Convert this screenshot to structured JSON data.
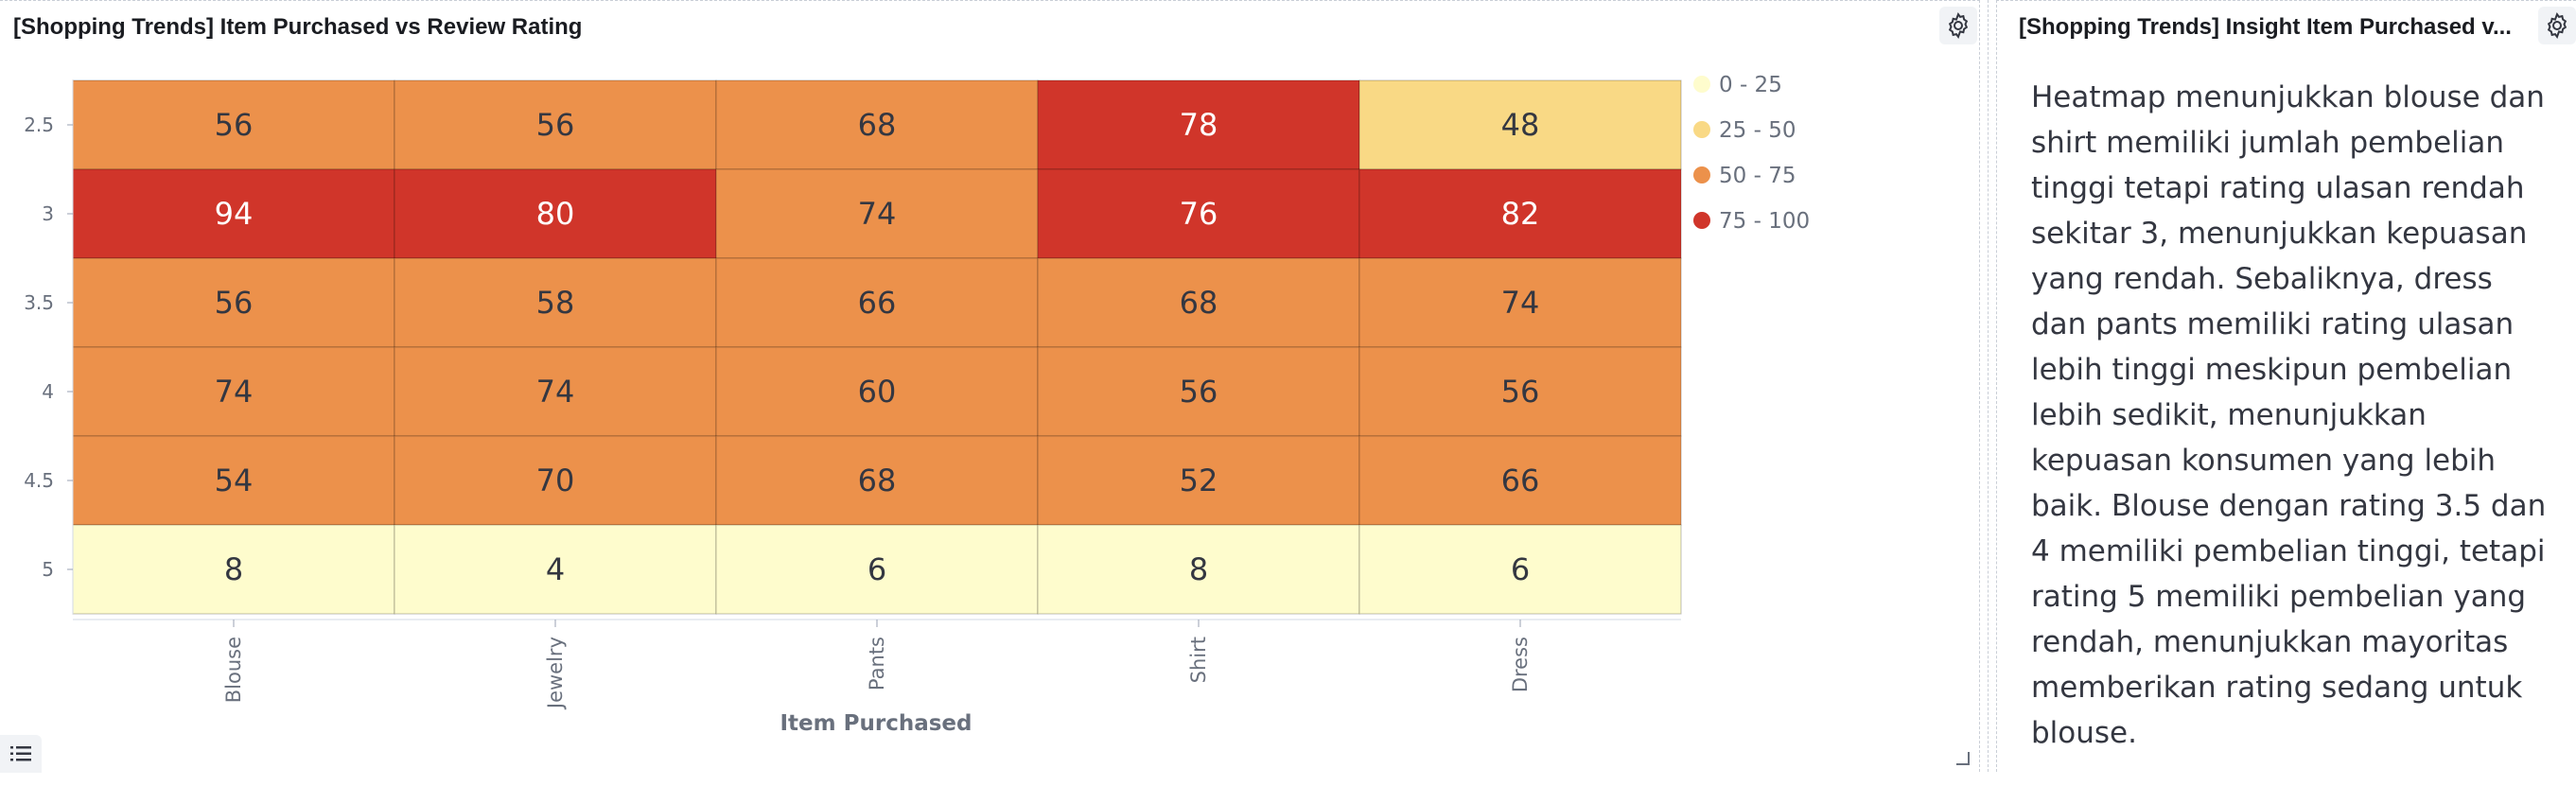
{
  "left_panel": {
    "title": "[Shopping Trends] Item Purchased vs Review Rating",
    "settings_icon": "gear-icon",
    "legend_toggle_icon": "list-icon"
  },
  "right_panel": {
    "title": "[Shopping Trends] Insight Item Purchased v...",
    "settings_icon": "gear-icon",
    "text": "Heatmap menunjukkan blouse dan shirt memiliki jumlah pembelian tinggi tetapi rating ulasan rendah sekitar 3, menunjukkan kepuasan yang rendah. Sebaliknya, dress dan pants memiliki rating ulasan lebih tinggi meskipun pembelian lebih sedikit, menunjukkan kepuasan konsumen yang lebih baik. Blouse dengan rating 3.5 dan 4 memiliki pembelian tinggi, tetapi rating 5 memiliki pembelian yang rendah, menunjukkan mayoritas memberikan rating sedang untuk blouse."
  },
  "chart_data": {
    "type": "heatmap",
    "title": "",
    "xlabel": "Item Purchased",
    "ylabel": "",
    "x_categories": [
      "Blouse",
      "Jewelry",
      "Pants",
      "Shirt",
      "Dress"
    ],
    "y_categories": [
      "2.5",
      "3",
      "3.5",
      "4",
      "4.5",
      "5"
    ],
    "values": [
      [
        56,
        56,
        68,
        78,
        48
      ],
      [
        94,
        80,
        74,
        76,
        82
      ],
      [
        56,
        58,
        66,
        68,
        74
      ],
      [
        74,
        74,
        60,
        56,
        56
      ],
      [
        54,
        70,
        68,
        52,
        66
      ],
      [
        8,
        4,
        6,
        8,
        6
      ]
    ],
    "legend_position": "right",
    "legend": [
      {
        "label": "0 - 25",
        "min": 0,
        "max": 25,
        "color": "#fefccd"
      },
      {
        "label": "25 - 50",
        "min": 25,
        "max": 50,
        "color": "#f9d985"
      },
      {
        "label": "50 - 75",
        "min": 50,
        "max": 75,
        "color": "#ec914b"
      },
      {
        "label": "75 - 100",
        "min": 75,
        "max": 100,
        "color": "#d0352a"
      }
    ]
  }
}
